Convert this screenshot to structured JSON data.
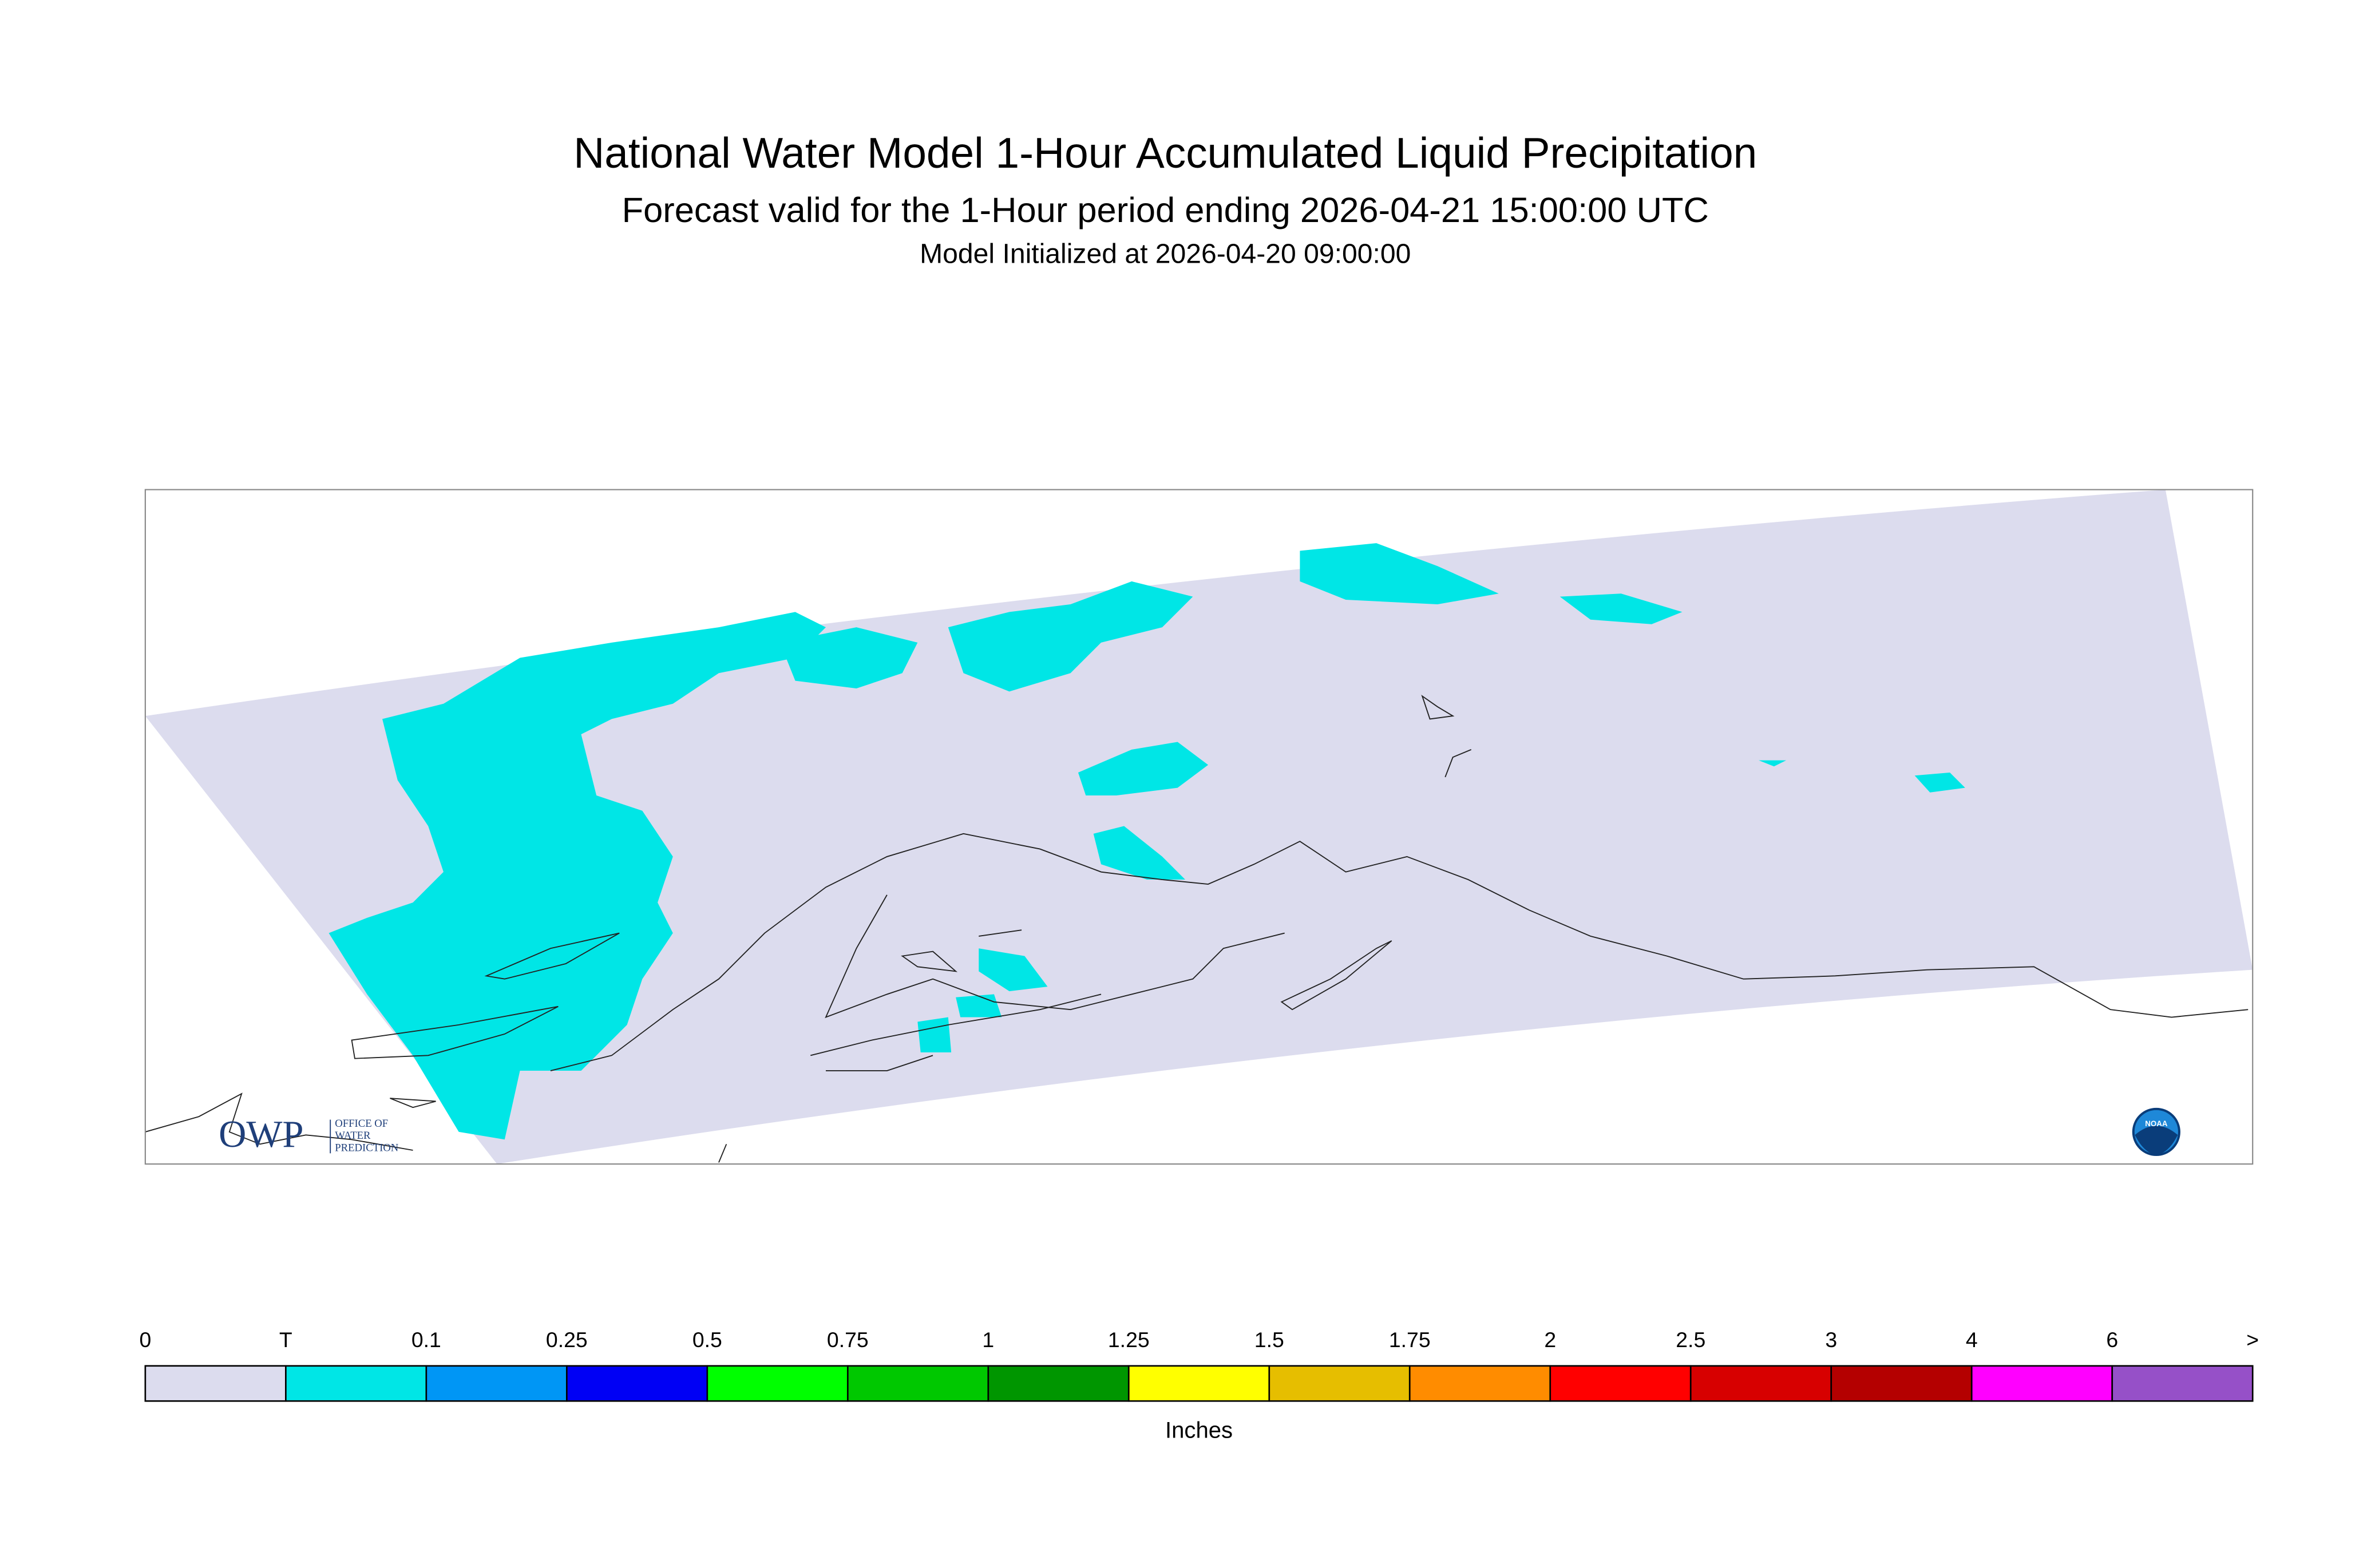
{
  "header": {
    "title": "National Water Model 1-Hour Accumulated Liquid Precipitation",
    "subtitle": "Forecast valid for the 1-Hour period ending 2026-04-21 15:00:00 UTC",
    "initialized": "Model Initialized at 2026-04-20 09:00:00"
  },
  "logos": {
    "owp": "OWP",
    "owp_lines": [
      "OFFICE OF",
      "WATER",
      "PREDICTION"
    ],
    "noaa": "NOAA"
  },
  "legend": {
    "labels": [
      "0",
      "T",
      "0.1",
      "0.25",
      "0.5",
      "0.75",
      "1",
      "1.25",
      "1.5",
      "1.75",
      "2",
      "2.5",
      "3",
      "4",
      "6",
      ">"
    ],
    "colors": [
      "#dcdcee",
      "#00e6e6",
      "#0096f5",
      "#0000f5",
      "#00ff00",
      "#00c800",
      "#009600",
      "#ffff00",
      "#e6be00",
      "#ff8c00",
      "#ff0000",
      "#d70000",
      "#b40000",
      "#ff00ff",
      "#9650c8"
    ],
    "units": "Inches"
  }
}
